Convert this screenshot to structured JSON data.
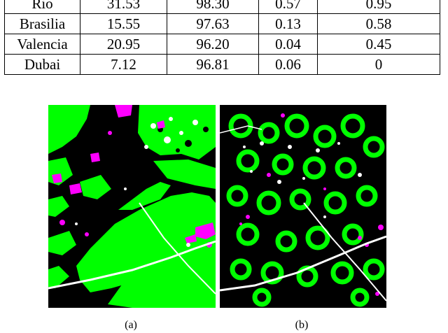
{
  "table": {
    "rows": [
      [
        "Rio",
        "31.53",
        "98.30",
        "0.57",
        "0.95"
      ],
      [
        "Brasilia",
        "15.55",
        "97.63",
        "0.13",
        "0.58"
      ],
      [
        "Valencia",
        "20.95",
        "96.20",
        "0.04",
        "0.45"
      ],
      [
        "Dubai",
        "7.12",
        "96.81",
        "0.06",
        "0"
      ]
    ]
  },
  "figure": {
    "caption_a": "(a)",
    "caption_b": "(b)",
    "colors": {
      "background": "#000000",
      "green": "#00ff00",
      "magenta": "#ff00ff",
      "white": "#ffffff"
    }
  }
}
